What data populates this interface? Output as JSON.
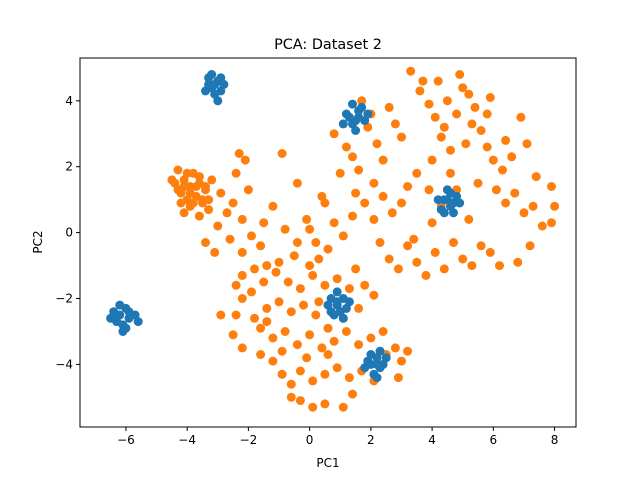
{
  "chart_data": {
    "type": "scatter",
    "title": "PCA: Dataset 2",
    "xlabel": "PC1",
    "ylabel": "PC2",
    "xlim": [
      -7.5,
      8.7
    ],
    "ylim": [
      -5.9,
      5.3
    ],
    "xticks": [
      -6,
      -4,
      -2,
      0,
      2,
      4,
      6,
      8
    ],
    "yticks": [
      -4,
      -2,
      0,
      2,
      4
    ],
    "grid": false,
    "legend": "none",
    "series": [
      {
        "color": "#ff7f0e",
        "points": [
          [
            -4.3,
            1.9
          ],
          [
            -4.1,
            1.6
          ],
          [
            -3.9,
            1.4
          ],
          [
            -4.2,
            1.2
          ],
          [
            -3.8,
            1.8
          ],
          [
            -4.0,
            1.0
          ],
          [
            -3.6,
            1.5
          ],
          [
            -3.4,
            1.3
          ],
          [
            -3.9,
            0.8
          ],
          [
            -3.5,
            0.9
          ],
          [
            -4.4,
            1.5
          ],
          [
            -3.7,
            1.1
          ],
          [
            -3.3,
            1.0
          ],
          [
            -4.1,
            0.6
          ],
          [
            -3.6,
            0.5
          ],
          [
            -3.2,
            1.6
          ],
          [
            -2.9,
            1.2
          ],
          [
            -2.7,
            0.6
          ],
          [
            -3.0,
            0.2
          ],
          [
            -2.5,
            0.9
          ],
          [
            -2.3,
            2.4
          ],
          [
            -2.1,
            2.2
          ],
          [
            -2.4,
            1.8
          ],
          [
            -2.0,
            1.3
          ],
          [
            -2.2,
            0.4
          ],
          [
            -2.6,
            -0.2
          ],
          [
            -3.1,
            -0.6
          ],
          [
            -3.4,
            -0.3
          ],
          [
            -2.2,
            -0.6
          ],
          [
            -1.9,
            -0.1
          ],
          [
            -1.5,
            0.3
          ],
          [
            -1.6,
            -0.4
          ],
          [
            -1.2,
            0.8
          ],
          [
            -0.9,
            2.4
          ],
          [
            -0.4,
            1.5
          ],
          [
            -0.1,
            0.4
          ],
          [
            0.2,
            -0.3
          ],
          [
            0.5,
            0.9
          ],
          [
            0.3,
            -0.8
          ],
          [
            0.0,
            -1.0
          ],
          [
            -0.5,
            -0.7
          ],
          [
            -1.0,
            -0.9
          ],
          [
            -1.4,
            -1.0
          ],
          [
            -1.8,
            -1.1
          ],
          [
            -2.2,
            -1.3
          ],
          [
            -2.4,
            -1.6
          ],
          [
            -1.9,
            -1.8
          ],
          [
            -1.5,
            -1.5
          ],
          [
            -1.1,
            -1.2
          ],
          [
            -0.7,
            -1.5
          ],
          [
            -0.3,
            -1.7
          ],
          [
            0.1,
            -1.3
          ],
          [
            0.5,
            -1.6
          ],
          [
            0.9,
            -1.4
          ],
          [
            1.3,
            -1.7
          ],
          [
            1.5,
            -1.1
          ],
          [
            1.8,
            -1.6
          ],
          [
            2.1,
            -1.9
          ],
          [
            1.6,
            -2.3
          ],
          [
            1.1,
            -2.6
          ],
          [
            0.6,
            -2.9
          ],
          [
            0.2,
            -2.5
          ],
          [
            -0.2,
            -2.2
          ],
          [
            -0.6,
            -2.4
          ],
          [
            -1.0,
            -2.1
          ],
          [
            -1.4,
            -2.3
          ],
          [
            -1.8,
            -2.6
          ],
          [
            -2.2,
            -2.0
          ],
          [
            -2.4,
            -2.5
          ],
          [
            -2.9,
            -2.5
          ],
          [
            -2.5,
            -3.1
          ],
          [
            -2.2,
            -3.5
          ],
          [
            -1.6,
            -2.9
          ],
          [
            -1.2,
            -3.2
          ],
          [
            -0.8,
            -3.0
          ],
          [
            -0.4,
            -3.4
          ],
          [
            0.0,
            -3.1
          ],
          [
            0.4,
            -3.5
          ],
          [
            0.8,
            -3.3
          ],
          [
            1.2,
            -3.0
          ],
          [
            1.6,
            -3.4
          ],
          [
            2.0,
            -3.2
          ],
          [
            2.4,
            -3.0
          ],
          [
            2.8,
            -3.5
          ],
          [
            2.5,
            -3.7
          ],
          [
            3.0,
            -3.9
          ],
          [
            3.2,
            -3.6
          ],
          [
            2.9,
            -4.4
          ],
          [
            2.1,
            -4.5
          ],
          [
            1.7,
            -4.2
          ],
          [
            1.3,
            -4.4
          ],
          [
            0.9,
            -4.1
          ],
          [
            0.5,
            -4.3
          ],
          [
            0.1,
            -4.5
          ],
          [
            -0.3,
            -4.2
          ],
          [
            -0.6,
            -4.6
          ],
          [
            -0.9,
            -4.3
          ],
          [
            -1.2,
            -3.9
          ],
          [
            -1.6,
            -3.7
          ],
          [
            -0.3,
            -5.1
          ],
          [
            0.1,
            -5.3
          ],
          [
            0.5,
            -5.2
          ],
          [
            -0.6,
            -5.0
          ],
          [
            1.1,
            -5.3
          ],
          [
            1.4,
            -4.9
          ],
          [
            -0.1,
            -3.8
          ],
          [
            0.6,
            -3.7
          ],
          [
            -0.9,
            -3.6
          ],
          [
            -1.4,
            -2.7
          ],
          [
            0.3,
            -2.1
          ],
          [
            0.7,
            -2.4
          ],
          [
            0.8,
            3.0
          ],
          [
            1.2,
            2.6
          ],
          [
            1.4,
            2.3
          ],
          [
            1.5,
            1.2
          ],
          [
            1.9,
            3.2
          ],
          [
            2.2,
            2.7
          ],
          [
            2.4,
            2.2
          ],
          [
            2.6,
            3.8
          ],
          [
            2.8,
            3.3
          ],
          [
            3.0,
            2.9
          ],
          [
            3.3,
            4.9
          ],
          [
            3.6,
            4.3
          ],
          [
            3.9,
            3.9
          ],
          [
            4.1,
            3.5
          ],
          [
            4.3,
            2.9
          ],
          [
            4.6,
            2.5
          ],
          [
            4.2,
            4.6
          ],
          [
            4.5,
            4.0
          ],
          [
            4.8,
            3.6
          ],
          [
            5.0,
            4.4
          ],
          [
            4.9,
            4.8
          ],
          [
            5.2,
            4.2
          ],
          [
            5.4,
            3.8
          ],
          [
            5.6,
            3.1
          ],
          [
            5.1,
            2.7
          ],
          [
            5.8,
            2.6
          ],
          [
            6.0,
            2.2
          ],
          [
            6.3,
            1.9
          ],
          [
            6.6,
            2.3
          ],
          [
            6.9,
            3.5
          ],
          [
            7.1,
            2.7
          ],
          [
            6.1,
            1.3
          ],
          [
            6.4,
            0.9
          ],
          [
            6.7,
            1.2
          ],
          [
            7.0,
            0.6
          ],
          [
            7.3,
            0.8
          ],
          [
            7.6,
            0.2
          ],
          [
            7.9,
            1.4
          ],
          [
            8.0,
            0.8
          ],
          [
            7.4,
            1.7
          ],
          [
            3.5,
            1.8
          ],
          [
            3.2,
            1.4
          ],
          [
            3.0,
            0.9
          ],
          [
            2.7,
            0.6
          ],
          [
            2.4,
            1.1
          ],
          [
            2.1,
            0.4
          ],
          [
            1.8,
            0.9
          ],
          [
            1.4,
            0.5
          ],
          [
            1.1,
            -0.1
          ],
          [
            0.8,
            0.3
          ],
          [
            0.6,
            -0.5
          ],
          [
            2.3,
            -0.3
          ],
          [
            2.6,
            -0.8
          ],
          [
            2.9,
            -1.1
          ],
          [
            3.2,
            -0.4
          ],
          [
            3.5,
            -0.9
          ],
          [
            3.8,
            -1.3
          ],
          [
            4.1,
            -0.6
          ],
          [
            4.4,
            -1.1
          ],
          [
            4.7,
            -0.3
          ],
          [
            5.0,
            -0.8
          ],
          [
            5.3,
            -1.0
          ],
          [
            5.6,
            -0.4
          ],
          [
            5.9,
            -0.6
          ],
          [
            6.2,
            -1.0
          ],
          [
            6.8,
            -0.9
          ],
          [
            7.2,
            -0.4
          ],
          [
            7.9,
            0.3
          ],
          [
            4.0,
            0.3
          ],
          [
            4.3,
            0.8
          ],
          [
            4.8,
            1.3
          ],
          [
            5.2,
            0.4
          ],
          [
            5.5,
            1.5
          ],
          [
            4.6,
            1.8
          ],
          [
            3.9,
            1.3
          ],
          [
            3.4,
            -0.2
          ],
          [
            1.0,
            1.8
          ],
          [
            0.4,
            1.1
          ],
          [
            0.0,
            0.1
          ],
          [
            -0.4,
            -0.3
          ],
          [
            -0.8,
            0.1
          ],
          [
            1.6,
            1.9
          ],
          [
            2.1,
            1.5
          ],
          [
            5.8,
            3.6
          ],
          [
            5.9,
            4.1
          ],
          [
            6.4,
            2.8
          ],
          [
            3.7,
            4.6
          ],
          [
            4.0,
            2.2
          ],
          [
            5.3,
            3.3
          ],
          [
            4.4,
            3.2
          ],
          [
            2.0,
            3.6
          ],
          [
            1.7,
            4.0
          ],
          [
            -4.3,
            1.3
          ],
          [
            -4.0,
            1.8
          ],
          [
            -3.7,
            1.4
          ],
          [
            -3.5,
            1.0
          ],
          [
            -4.2,
            0.9
          ],
          [
            -3.9,
            1.2
          ],
          [
            -3.6,
            1.7
          ],
          [
            -4.1,
            1.4
          ],
          [
            -3.8,
            0.9
          ],
          [
            -3.4,
            1.4
          ],
          [
            -4.5,
            1.6
          ],
          [
            -3.3,
            0.7
          ]
        ]
      },
      {
        "color": "#1f77b4",
        "points": [
          [
            -3.2,
            4.4
          ],
          [
            -3.0,
            4.6
          ],
          [
            -3.3,
            4.7
          ],
          [
            -2.9,
            4.3
          ],
          [
            -3.4,
            4.3
          ],
          [
            -3.1,
            4.2
          ],
          [
            -3.2,
            4.8
          ],
          [
            -2.9,
            4.7
          ],
          [
            -3.0,
            4.0
          ],
          [
            -3.3,
            4.5
          ],
          [
            -2.8,
            4.5
          ],
          [
            -3.1,
            4.5
          ],
          [
            -6.2,
            -2.5
          ],
          [
            -6.0,
            -2.3
          ],
          [
            -6.3,
            -2.7
          ],
          [
            -5.9,
            -2.6
          ],
          [
            -6.1,
            -2.8
          ],
          [
            -6.4,
            -2.4
          ],
          [
            -6.0,
            -2.9
          ],
          [
            -5.7,
            -2.5
          ],
          [
            -6.2,
            -2.2
          ],
          [
            -6.5,
            -2.6
          ],
          [
            -6.1,
            -3.0
          ],
          [
            -5.6,
            -2.7
          ],
          [
            -6.3,
            -2.5
          ],
          [
            -5.9,
            -2.4
          ],
          [
            1.3,
            3.5
          ],
          [
            1.6,
            3.7
          ],
          [
            1.4,
            3.3
          ],
          [
            1.8,
            3.4
          ],
          [
            1.5,
            3.1
          ],
          [
            1.2,
            3.6
          ],
          [
            1.7,
            3.8
          ],
          [
            1.9,
            3.6
          ],
          [
            1.4,
            3.9
          ],
          [
            1.6,
            3.5
          ],
          [
            1.5,
            3.4
          ],
          [
            1.1,
            3.3
          ],
          [
            4.4,
            1.0
          ],
          [
            4.6,
            0.8
          ],
          [
            4.3,
            0.7
          ],
          [
            4.8,
            1.1
          ],
          [
            4.5,
            1.3
          ],
          [
            4.7,
            0.6
          ],
          [
            4.2,
            1.0
          ],
          [
            4.9,
            0.9
          ],
          [
            4.6,
            1.2
          ],
          [
            4.4,
            0.6
          ],
          [
            4.7,
            0.9
          ],
          [
            4.5,
            1.0
          ],
          [
            0.7,
            -2.0
          ],
          [
            0.9,
            -2.2
          ],
          [
            1.1,
            -2.0
          ],
          [
            0.8,
            -2.5
          ],
          [
            1.0,
            -2.4
          ],
          [
            1.2,
            -2.3
          ],
          [
            0.6,
            -2.2
          ],
          [
            0.9,
            -1.8
          ],
          [
            1.1,
            -2.6
          ],
          [
            0.7,
            -2.4
          ],
          [
            1.3,
            -2.1
          ],
          [
            0.9,
            -2.1
          ],
          [
            2.0,
            -4.0
          ],
          [
            2.2,
            -3.8
          ],
          [
            2.3,
            -4.1
          ],
          [
            2.1,
            -4.3
          ],
          [
            1.9,
            -3.9
          ],
          [
            2.4,
            -4.0
          ],
          [
            2.2,
            -4.4
          ],
          [
            2.0,
            -3.7
          ],
          [
            2.5,
            -3.8
          ],
          [
            1.8,
            -4.1
          ],
          [
            2.2,
            -4.0
          ],
          [
            2.3,
            -3.6
          ]
        ]
      }
    ]
  }
}
